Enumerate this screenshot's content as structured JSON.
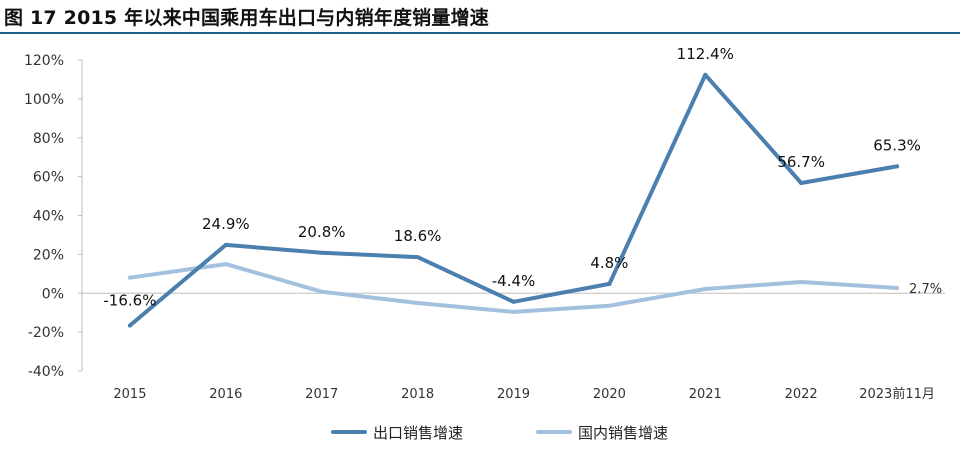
{
  "title": "图 17  2015 年以来中国乘用车出口与内销年度销量增速",
  "chart_data": {
    "type": "line",
    "title": "图 17  2015 年以来中国乘用车出口与内销年度销量增速",
    "categories": [
      "2015",
      "2016",
      "2017",
      "2018",
      "2019",
      "2020",
      "2021",
      "2022",
      "2023前11月"
    ],
    "series": [
      {
        "name": "出口销售增速",
        "color": "#4a7fae",
        "values": [
          -16.6,
          24.9,
          20.8,
          18.6,
          -4.4,
          4.8,
          112.4,
          56.7,
          65.3
        ],
        "labels": [
          "-16.6%",
          "24.9%",
          "20.8%",
          "18.6%",
          "-4.4%",
          "4.8%",
          "112.4%",
          "56.7%",
          "65.3%"
        ]
      },
      {
        "name": "国内销售增速",
        "color": "#a3c1de",
        "values": [
          8.0,
          15.0,
          0.8,
          -5.0,
          -9.6,
          -6.4,
          2.2,
          5.8,
          2.7
        ],
        "labels": [
          "",
          "",
          "",
          "",
          "",
          "",
          "",
          "",
          "2.7%"
        ]
      }
    ],
    "ylim": [
      -40,
      120
    ],
    "yticks": [
      -40,
      -20,
      0,
      20,
      40,
      60,
      80,
      100,
      120
    ],
    "ytick_labels": [
      "-40%",
      "-20%",
      "0%",
      "20%",
      "40%",
      "60%",
      "80%",
      "100%",
      "120%"
    ],
    "grid": false,
    "legend": "bottom-center"
  }
}
